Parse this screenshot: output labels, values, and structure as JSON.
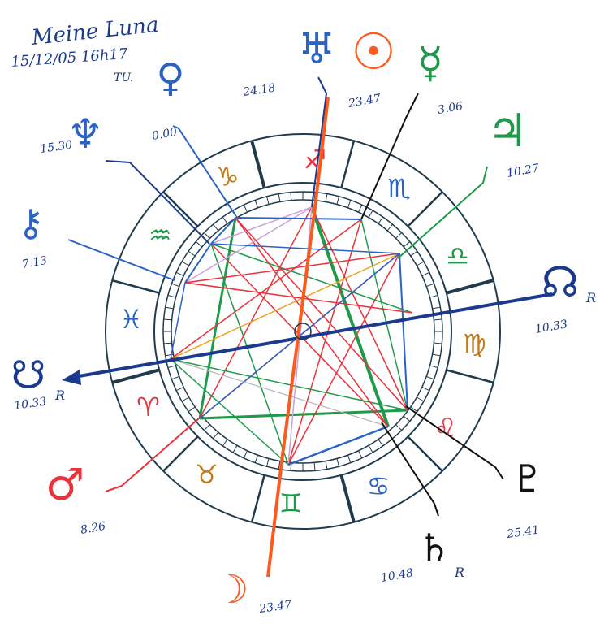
{
  "header": {
    "line1": "Meine Luna",
    "line2": "15/12/05  16h17",
    "line3": "TU."
  },
  "colors": {
    "ring": "#1f3b4d",
    "red": "#e8323c",
    "blue": "#2a62c6",
    "green": "#1f9a4a",
    "lilac": "#c9a2dc",
    "orange": "#f0a21e",
    "grey": "#b5b5b5",
    "navy": "#1b3a8f",
    "orangeRed": "#ff5a1e",
    "dark": "#111111"
  },
  "signs": [
    {
      "name": "capricorn",
      "glyph": "♑",
      "color": "#c47a1a"
    },
    {
      "name": "sagittarius",
      "glyph": "♐",
      "color": "#e8323c"
    },
    {
      "name": "scorpio",
      "glyph": "♏",
      "color": "#2a62c6"
    },
    {
      "name": "libra",
      "glyph": "♎",
      "color": "#1f9a4a"
    },
    {
      "name": "virgo",
      "glyph": "♍",
      "color": "#c47a1a"
    },
    {
      "name": "leo",
      "glyph": "♌",
      "color": "#e8323c"
    },
    {
      "name": "cancer",
      "glyph": "♋",
      "color": "#2a62c6"
    },
    {
      "name": "gemini",
      "glyph": "♊",
      "color": "#1f9a4a"
    },
    {
      "name": "taurus",
      "glyph": "♉",
      "color": "#c47a1a"
    },
    {
      "name": "aries",
      "glyph": "♈",
      "color": "#e8323c"
    },
    {
      "name": "pisces",
      "glyph": "♓",
      "color": "#2a62c6"
    },
    {
      "name": "aquarius",
      "glyph": "♒",
      "color": "#1f9a4a"
    }
  ],
  "planets": [
    {
      "name": "uranus",
      "glyph": "♅",
      "label": "24.18",
      "color": "#2a62c6"
    },
    {
      "name": "sun",
      "glyph": "☉",
      "label": "23.47",
      "color": "#ff5a1e"
    },
    {
      "name": "mercury",
      "glyph": "☿",
      "label": "3.06",
      "color": "#1f9a4a"
    },
    {
      "name": "jupiter",
      "glyph": "♃",
      "label": "10.27",
      "color": "#1f9a4a"
    },
    {
      "name": "north-node",
      "glyph": "☊",
      "label": "10.33",
      "suffix": "R",
      "color": "#1b3a8f"
    },
    {
      "name": "pluto",
      "glyph": "♇",
      "label": "25.41",
      "color": "#111111"
    },
    {
      "name": "saturn",
      "glyph": "♄",
      "label": "10.48",
      "suffix": "R",
      "color": "#111111"
    },
    {
      "name": "moon",
      "glyph": "☽",
      "label": "23.47",
      "color": "#ff5a1e"
    },
    {
      "name": "mars",
      "glyph": "♂",
      "label": "8.26",
      "color": "#e8323c"
    },
    {
      "name": "south-node",
      "glyph": "☋",
      "label": "10.33",
      "suffix": "R",
      "color": "#1b3a8f"
    },
    {
      "name": "chiron",
      "glyph": "⚷",
      "label": "7.13",
      "color": "#2a62c6"
    },
    {
      "name": "neptune",
      "glyph": "♆",
      "label": "15.30",
      "color": "#2a62c6"
    },
    {
      "name": "venus",
      "glyph": "♀",
      "label": "0.00",
      "color": "#2a62c6"
    }
  ]
}
